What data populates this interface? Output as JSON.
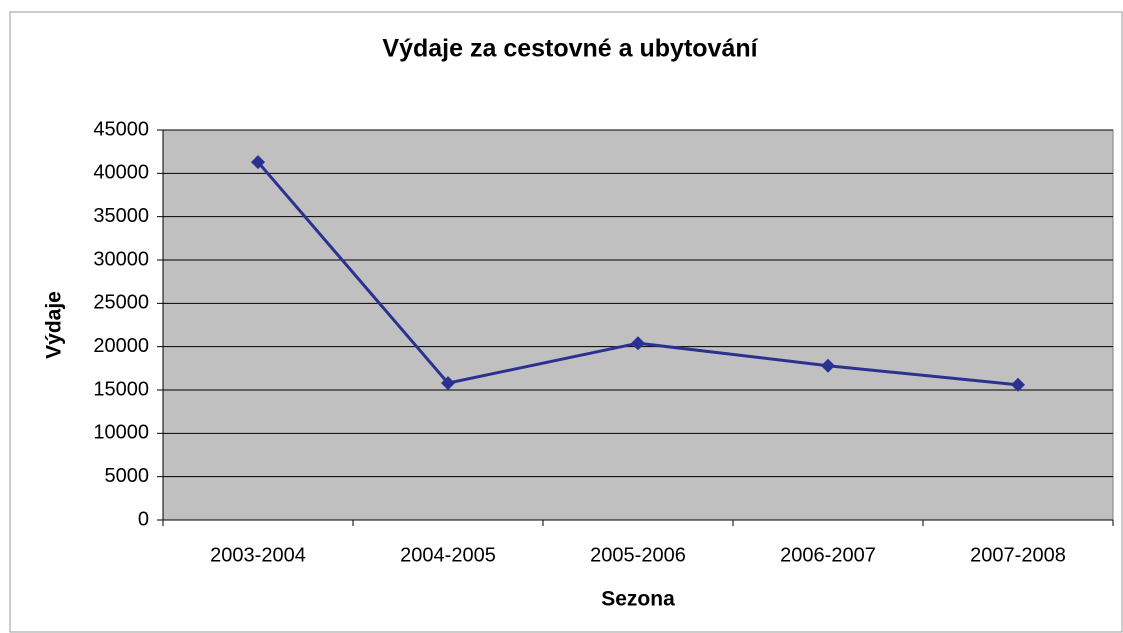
{
  "chart_data": {
    "type": "line",
    "title": "Výdaje za cestovné a ubytování",
    "x_label": "Sezona",
    "y_label": "Výdaje",
    "categories": [
      "2003-2004",
      "2004-2005",
      "2005-2006",
      "2006-2007",
      "2007-2008"
    ],
    "series": [
      {
        "name": "Výdaje",
        "color": "#2b3190",
        "values": [
          41300,
          15800,
          20400,
          17800,
          15600
        ]
      }
    ],
    "ylim": [
      0,
      45000
    ],
    "yticks": [
      0,
      5000,
      10000,
      15000,
      20000,
      25000,
      30000,
      35000,
      40000,
      45000
    ],
    "grid": true
  }
}
